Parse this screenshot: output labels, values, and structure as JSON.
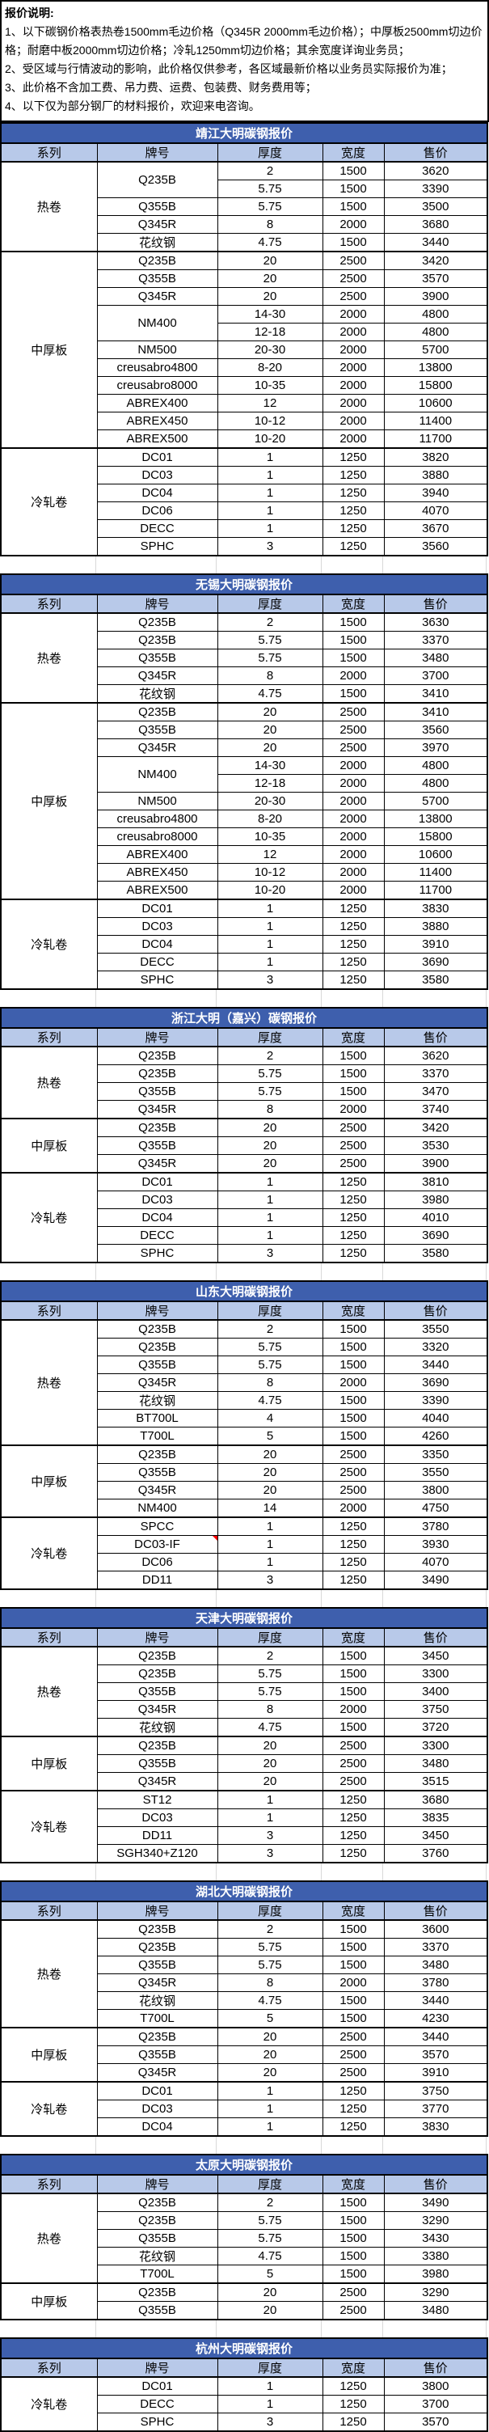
{
  "notes": {
    "heading": "报价说明:",
    "lines": [
      "1、以下碳钢价格表热卷1500mm毛边价格（Q345R 2000mm毛边价格）；中厚板2500mm切边价格；耐磨中板2000mm切边价格；冷轧1250mm切边价格；其余宽度详询业务员；",
      "2、受区域与行情波动的影响，此价格仅供参考，各区域最新价格以业务员实际报价为准；",
      "3、此价格不含加工费、吊力费、运费、包装费、财务费用等；",
      "4、以下仅为部分钢厂的材料报价，欢迎来电咨询。"
    ]
  },
  "columns": [
    "系列",
    "牌号",
    "厚度",
    "宽度",
    "售价"
  ],
  "colors": {
    "title_bg": "#3E5FAD",
    "header_bg": "#B8C9E9",
    "border": "#000000",
    "comment_marker": "#FF0000"
  },
  "tables": [
    {
      "title": "靖江大明碳钢报价",
      "sections": [
        {
          "series": "热卷",
          "rows": [
            {
              "grade": "Q235B",
              "grade_span": 2,
              "thickness": "2",
              "width": "1500",
              "price": "3620"
            },
            {
              "grade": null,
              "thickness": "5.75",
              "width": "1500",
              "price": "3390"
            },
            {
              "grade": "Q355B",
              "thickness": "5.75",
              "width": "1500",
              "price": "3500"
            },
            {
              "grade": "Q345R",
              "thickness": "8",
              "width": "2000",
              "price": "3680"
            },
            {
              "grade": "花纹钢",
              "thickness": "4.75",
              "width": "1500",
              "price": "3440"
            }
          ]
        },
        {
          "series": "中厚板",
          "rows": [
            {
              "grade": "Q235B",
              "thickness": "20",
              "width": "2500",
              "price": "3420"
            },
            {
              "grade": "Q355B",
              "thickness": "20",
              "width": "2500",
              "price": "3570"
            },
            {
              "grade": "Q345R",
              "thickness": "20",
              "width": "2500",
              "price": "3900"
            },
            {
              "grade": "NM400",
              "grade_span": 2,
              "thickness": "14-30",
              "width": "2000",
              "price": "4800"
            },
            {
              "grade": null,
              "thickness": "12-18",
              "width": "2000",
              "price": "4800"
            },
            {
              "grade": "NM500",
              "thickness": "20-30",
              "width": "2000",
              "price": "5700"
            },
            {
              "grade": "creusabro4800",
              "thickness": "8-20",
              "width": "2000",
              "price": "13800"
            },
            {
              "grade": "creusabro8000",
              "thickness": "10-35",
              "width": "2000",
              "price": "15800"
            },
            {
              "grade": "ABREX400",
              "thickness": "12",
              "width": "2000",
              "price": "10600"
            },
            {
              "grade": "ABREX450",
              "thickness": "10-12",
              "width": "2000",
              "price": "11400"
            },
            {
              "grade": "ABREX500",
              "thickness": "10-20",
              "width": "2000",
              "price": "11700"
            }
          ]
        },
        {
          "series": "冷轧卷",
          "rows": [
            {
              "grade": "DC01",
              "thickness": "1",
              "width": "1250",
              "price": "3820"
            },
            {
              "grade": "DC03",
              "thickness": "1",
              "width": "1250",
              "price": "3880"
            },
            {
              "grade": "DC04",
              "thickness": "1",
              "width": "1250",
              "price": "3940"
            },
            {
              "grade": "DC06",
              "thickness": "1",
              "width": "1250",
              "price": "4070"
            },
            {
              "grade": "DECC",
              "thickness": "1",
              "width": "1250",
              "price": "3670"
            },
            {
              "grade": "SPHC",
              "thickness": "3",
              "width": "1250",
              "price": "3560"
            }
          ]
        }
      ]
    },
    {
      "title": "无锡大明碳钢报价",
      "sections": [
        {
          "series": "热卷",
          "rows": [
            {
              "grade": "Q235B",
              "thickness": "2",
              "width": "1500",
              "price": "3630"
            },
            {
              "grade": "Q235B",
              "thickness": "5.75",
              "width": "1500",
              "price": "3370"
            },
            {
              "grade": "Q355B",
              "thickness": "5.75",
              "width": "1500",
              "price": "3480"
            },
            {
              "grade": "Q345R",
              "thickness": "8",
              "width": "2000",
              "price": "3700"
            },
            {
              "grade": "花纹钢",
              "thickness": "4.75",
              "width": "1500",
              "price": "3410"
            }
          ]
        },
        {
          "series": "中厚板",
          "rows": [
            {
              "grade": "Q235B",
              "thickness": "20",
              "width": "2500",
              "price": "3410"
            },
            {
              "grade": "Q355B",
              "thickness": "20",
              "width": "2500",
              "price": "3560"
            },
            {
              "grade": "Q345R",
              "thickness": "20",
              "width": "2500",
              "price": "3970"
            },
            {
              "grade": "NM400",
              "grade_span": 2,
              "thickness": "14-30",
              "width": "2000",
              "price": "4800"
            },
            {
              "grade": null,
              "thickness": "12-18",
              "width": "2000",
              "price": "4800"
            },
            {
              "grade": "NM500",
              "thickness": "20-30",
              "width": "2000",
              "price": "5700"
            },
            {
              "grade": "creusabro4800",
              "thickness": "8-20",
              "width": "2000",
              "price": "13800"
            },
            {
              "grade": "creusabro8000",
              "thickness": "10-35",
              "width": "2000",
              "price": "15800"
            },
            {
              "grade": "ABREX400",
              "thickness": "12",
              "width": "2000",
              "price": "10600"
            },
            {
              "grade": "ABREX450",
              "thickness": "10-12",
              "width": "2000",
              "price": "11400"
            },
            {
              "grade": "ABREX500",
              "thickness": "10-20",
              "width": "2000",
              "price": "11700"
            }
          ]
        },
        {
          "series": "冷轧卷",
          "rows": [
            {
              "grade": "DC01",
              "thickness": "1",
              "width": "1250",
              "price": "3830"
            },
            {
              "grade": "DC03",
              "thickness": "1",
              "width": "1250",
              "price": "3880"
            },
            {
              "grade": "DC04",
              "thickness": "1",
              "width": "1250",
              "price": "3910"
            },
            {
              "grade": "DECC",
              "thickness": "1",
              "width": "1250",
              "price": "3690"
            },
            {
              "grade": "SPHC",
              "thickness": "3",
              "width": "1250",
              "price": "3580"
            }
          ]
        }
      ]
    },
    {
      "title": "浙江大明（嘉兴）碳钢报价",
      "sections": [
        {
          "series": "热卷",
          "rows": [
            {
              "grade": "Q235B",
              "thickness": "2",
              "width": "1500",
              "price": "3620"
            },
            {
              "grade": "Q235B",
              "thickness": "5.75",
              "width": "1500",
              "price": "3370"
            },
            {
              "grade": "Q355B",
              "thickness": "5.75",
              "width": "1500",
              "price": "3470"
            },
            {
              "grade": "Q345R",
              "thickness": "8",
              "width": "2000",
              "price": "3740"
            }
          ]
        },
        {
          "series": "中厚板",
          "rows": [
            {
              "grade": "Q235B",
              "thickness": "20",
              "width": "2500",
              "price": "3420"
            },
            {
              "grade": "Q355B",
              "thickness": "20",
              "width": "2500",
              "price": "3530"
            },
            {
              "grade": "Q345R",
              "thickness": "20",
              "width": "2500",
              "price": "3900"
            }
          ]
        },
        {
          "series": "冷轧卷",
          "rows": [
            {
              "grade": "DC01",
              "thickness": "1",
              "width": "1250",
              "price": "3810"
            },
            {
              "grade": "DC03",
              "thickness": "1",
              "width": "1250",
              "price": "3980"
            },
            {
              "grade": "DC04",
              "thickness": "1",
              "width": "1250",
              "price": "4010"
            },
            {
              "grade": "DECC",
              "thickness": "1",
              "width": "1250",
              "price": "3690"
            },
            {
              "grade": "SPHC",
              "thickness": "3",
              "width": "1250",
              "price": "3580"
            }
          ]
        }
      ]
    },
    {
      "title": "山东大明碳钢报价",
      "sections": [
        {
          "series": "热卷",
          "rows": [
            {
              "grade": "Q235B",
              "thickness": "2",
              "width": "1500",
              "price": "3550"
            },
            {
              "grade": "Q235B",
              "thickness": "5.75",
              "width": "1500",
              "price": "3320"
            },
            {
              "grade": "Q355B",
              "thickness": "5.75",
              "width": "1500",
              "price": "3440"
            },
            {
              "grade": "Q345R",
              "thickness": "8",
              "width": "2000",
              "price": "3690"
            },
            {
              "grade": "花纹钢",
              "thickness": "4.75",
              "width": "1500",
              "price": "3390"
            },
            {
              "grade": "BT700L",
              "thickness": "4",
              "width": "1500",
              "price": "4040"
            },
            {
              "grade": "T700L",
              "thickness": "5",
              "width": "1500",
              "price": "4260"
            }
          ]
        },
        {
          "series": "中厚板",
          "rows": [
            {
              "grade": "Q235B",
              "thickness": "20",
              "width": "2500",
              "price": "3350"
            },
            {
              "grade": "Q355B",
              "thickness": "20",
              "width": "2500",
              "price": "3550"
            },
            {
              "grade": "Q345R",
              "thickness": "20",
              "width": "2500",
              "price": "3800"
            },
            {
              "grade": "NM400",
              "thickness": "14",
              "width": "2000",
              "price": "4750"
            }
          ]
        },
        {
          "series": "冷轧卷",
          "rows": [
            {
              "grade": "SPCC",
              "thickness": "1",
              "width": "1250",
              "price": "3780"
            },
            {
              "grade": "DC03-IF",
              "note": true,
              "thickness": "1",
              "width": "1250",
              "price": "3930"
            },
            {
              "grade": "DC06",
              "thickness": "1",
              "width": "1250",
              "price": "4070"
            },
            {
              "grade": "DD11",
              "thickness": "3",
              "width": "1250",
              "price": "3490"
            }
          ]
        }
      ]
    },
    {
      "title": "天津大明碳钢报价",
      "sections": [
        {
          "series": "热卷",
          "rows": [
            {
              "grade": "Q235B",
              "thickness": "2",
              "width": "1500",
              "price": "3450"
            },
            {
              "grade": "Q235B",
              "thickness": "5.75",
              "width": "1500",
              "price": "3300"
            },
            {
              "grade": "Q355B",
              "thickness": "5.75",
              "width": "1500",
              "price": "3400"
            },
            {
              "grade": "Q345R",
              "thickness": "8",
              "width": "2000",
              "price": "3750"
            },
            {
              "grade": "花纹钢",
              "thickness": "4.75",
              "width": "1500",
              "price": "3720"
            }
          ]
        },
        {
          "series": "中厚板",
          "rows": [
            {
              "grade": "Q235B",
              "thickness": "20",
              "width": "2500",
              "price": "3300"
            },
            {
              "grade": "Q355B",
              "thickness": "20",
              "width": "2500",
              "price": "3480"
            },
            {
              "grade": "Q345R",
              "thickness": "20",
              "width": "2500",
              "price": "3515"
            }
          ]
        },
        {
          "series": "冷轧卷",
          "rows": [
            {
              "grade": "ST12",
              "thickness": "1",
              "width": "1250",
              "price": "3680"
            },
            {
              "grade": "DC03",
              "thickness": "1",
              "width": "1250",
              "price": "3835"
            },
            {
              "grade": "DD11",
              "thickness": "3",
              "width": "1250",
              "price": "3450"
            },
            {
              "grade": "SGH340+Z120",
              "thickness": "3",
              "width": "1250",
              "price": "3760"
            }
          ]
        }
      ]
    },
    {
      "title": "湖北大明碳钢报价",
      "sections": [
        {
          "series": "热卷",
          "rows": [
            {
              "grade": "Q235B",
              "thickness": "2",
              "width": "1500",
              "price": "3600"
            },
            {
              "grade": "Q235B",
              "thickness": "5.75",
              "width": "1500",
              "price": "3370"
            },
            {
              "grade": "Q355B",
              "thickness": "5.75",
              "width": "1500",
              "price": "3480"
            },
            {
              "grade": "Q345R",
              "thickness": "8",
              "width": "2000",
              "price": "3780"
            },
            {
              "grade": "花纹钢",
              "thickness": "4.75",
              "width": "1500",
              "price": "3440"
            },
            {
              "grade": "T700L",
              "thickness": "5",
              "width": "1500",
              "price": "4230"
            }
          ]
        },
        {
          "series": "中厚板",
          "rows": [
            {
              "grade": "Q235B",
              "thickness": "20",
              "width": "2500",
              "price": "3440"
            },
            {
              "grade": "Q355B",
              "thickness": "20",
              "width": "2500",
              "price": "3570"
            },
            {
              "grade": "Q345R",
              "thickness": "20",
              "width": "2500",
              "price": "3910"
            }
          ]
        },
        {
          "series": "冷轧卷",
          "rows": [
            {
              "grade": "DC01",
              "thickness": "1",
              "width": "1250",
              "price": "3750"
            },
            {
              "grade": "DC03",
              "thickness": "1",
              "width": "1250",
              "price": "3770"
            },
            {
              "grade": "DC04",
              "thickness": "1",
              "width": "1250",
              "price": "3830"
            }
          ]
        }
      ]
    },
    {
      "title": "太原大明碳钢报价",
      "sections": [
        {
          "series": "热卷",
          "rows": [
            {
              "grade": "Q235B",
              "thickness": "2",
              "width": "1500",
              "price": "3490"
            },
            {
              "grade": "Q235B",
              "thickness": "5.75",
              "width": "1500",
              "price": "3290"
            },
            {
              "grade": "Q355B",
              "thickness": "5.75",
              "width": "1500",
              "price": "3430"
            },
            {
              "grade": "花纹钢",
              "thickness": "4.75",
              "width": "1500",
              "price": "3380"
            },
            {
              "grade": "T700L",
              "thickness": "5",
              "width": "1500",
              "price": "3980"
            }
          ]
        },
        {
          "series": "中厚板",
          "rows": [
            {
              "grade": "Q235B",
              "thickness": "20",
              "width": "2500",
              "price": "3290"
            },
            {
              "grade": "Q355B",
              "thickness": "20",
              "width": "2500",
              "price": "3480"
            }
          ]
        }
      ]
    },
    {
      "title": "杭州大明碳钢报价",
      "sections": [
        {
          "series": "冷轧卷",
          "rows": [
            {
              "grade": "DC01",
              "thickness": "1",
              "width": "1250",
              "price": "3800"
            },
            {
              "grade": "DECC",
              "thickness": "1",
              "width": "1250",
              "price": "3700"
            },
            {
              "grade": "SPHC",
              "thickness": "3",
              "width": "1250",
              "price": "3570"
            }
          ]
        }
      ]
    }
  ]
}
